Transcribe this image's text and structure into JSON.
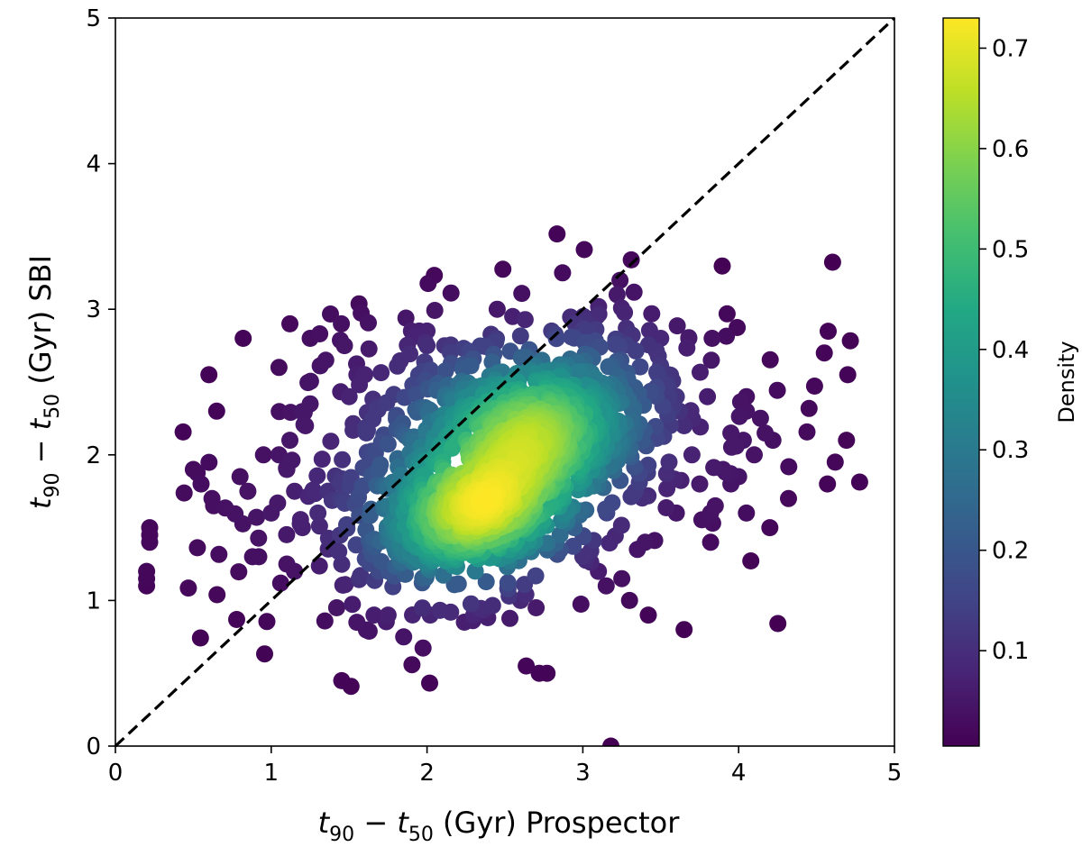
{
  "chart_data": {
    "type": "scatter",
    "xlabel_parts": {
      "t": "t",
      "sub1": "90",
      "minus": " − ",
      "sub2": "50",
      "rest": " (Gyr) Prospector"
    },
    "ylabel_parts": {
      "t": "t",
      "sub1": "90",
      "minus": " − ",
      "sub2": "50",
      "rest": " (Gyr) SBI"
    },
    "xlim": [
      0,
      5
    ],
    "ylim": [
      0,
      5
    ],
    "x_ticks": [
      "0",
      "1",
      "2",
      "3",
      "4",
      "5"
    ],
    "y_ticks": [
      "0",
      "1",
      "2",
      "3",
      "4",
      "5"
    ],
    "grid": false,
    "reference_line": {
      "style": "dashed",
      "color": "#000000",
      "from": [
        0,
        0
      ],
      "to": [
        5,
        5
      ]
    },
    "colorbar": {
      "label": "Density",
      "range": [
        0.005,
        0.73
      ],
      "ticks": [
        "0.1",
        "0.2",
        "0.3",
        "0.4",
        "0.5",
        "0.6",
        "0.7"
      ],
      "colormap": "viridis"
    },
    "clusters": [
      {
        "cx": 2.3,
        "cy": 1.55,
        "sx": 0.32,
        "sy": 0.17,
        "rho": 0.35,
        "n": 420
      },
      {
        "cx": 2.72,
        "cy": 2.15,
        "sx": 0.35,
        "sy": 0.27,
        "rho": 0.35,
        "n": 520
      },
      {
        "cx": 2.3,
        "cy": 2.0,
        "sx": 0.62,
        "sy": 0.5,
        "rho": 0.3,
        "n": 520
      },
      {
        "cx": 2.5,
        "cy": 1.9,
        "sx": 1.05,
        "sy": 0.6,
        "rho": 0.2,
        "n": 160
      }
    ],
    "points": [
      [
        0.2,
        1.15
      ],
      [
        0.2,
        1.1
      ],
      [
        0.22,
        1.5
      ],
      [
        0.22,
        1.45
      ],
      [
        0.22,
        1.4
      ],
      [
        0.2,
        1.2
      ],
      [
        0.5,
        1.9
      ],
      [
        0.55,
        1.8
      ],
      [
        0.6,
        2.55
      ],
      [
        0.62,
        1.7
      ],
      [
        0.65,
        2.3
      ],
      [
        0.8,
        1.85
      ],
      [
        0.82,
        2.8
      ],
      [
        0.85,
        1.75
      ],
      [
        0.88,
        1.3
      ],
      [
        0.92,
        1.3
      ],
      [
        0.95,
        2.0
      ],
      [
        1.0,
        1.6
      ],
      [
        1.05,
        2.6
      ],
      [
        1.05,
        2.0
      ],
      [
        1.1,
        1.9
      ],
      [
        1.1,
        1.25
      ],
      [
        1.12,
        2.1
      ],
      [
        1.12,
        2.9
      ],
      [
        1.15,
        1.2
      ],
      [
        1.15,
        1.75
      ],
      [
        1.2,
        1.5
      ],
      [
        1.22,
        2.2
      ],
      [
        1.25,
        2.35
      ],
      [
        1.25,
        2.8
      ],
      [
        1.3,
        1.6
      ],
      [
        1.35,
        2.65
      ],
      [
        1.45,
        2.9
      ],
      [
        1.47,
        2.75
      ],
      [
        1.5,
        2.4
      ],
      [
        1.55,
        2.55
      ],
      [
        1.6,
        2.55
      ],
      [
        1.42,
        0.95
      ],
      [
        1.55,
        0.85
      ],
      [
        1.66,
        0.9
      ],
      [
        1.75,
        0.9
      ],
      [
        1.85,
        0.75
      ],
      [
        1.9,
        2.85
      ],
      [
        1.95,
        2.85
      ],
      [
        2.0,
        2.85
      ],
      [
        2.0,
        2.75
      ],
      [
        2.02,
        0.9
      ],
      [
        2.3,
        0.9
      ],
      [
        2.45,
        3.0
      ],
      [
        2.55,
        2.95
      ],
      [
        2.6,
        1.0
      ],
      [
        2.7,
        0.95
      ],
      [
        2.72,
        0.5
      ],
      [
        2.77,
        0.5
      ],
      [
        2.8,
        2.85
      ],
      [
        2.87,
        3.25
      ],
      [
        2.95,
        2.9
      ],
      [
        3.0,
        1.3
      ],
      [
        3.1,
        1.2
      ],
      [
        3.15,
        1.1
      ],
      [
        3.18,
        0.0
      ],
      [
        3.22,
        3.1
      ],
      [
        3.25,
        1.15
      ],
      [
        3.3,
        1.0
      ],
      [
        3.35,
        1.35
      ],
      [
        3.4,
        1.4
      ],
      [
        3.42,
        0.9
      ],
      [
        3.5,
        2.8
      ],
      [
        3.55,
        2.55
      ],
      [
        3.6,
        2.4
      ],
      [
        3.6,
        1.6
      ],
      [
        3.62,
        2.3
      ],
      [
        3.65,
        2.2
      ],
      [
        3.65,
        0.8
      ],
      [
        3.68,
        2.8
      ],
      [
        3.7,
        2.0
      ],
      [
        3.75,
        1.8
      ],
      [
        3.8,
        2.4
      ],
      [
        3.82,
        1.6
      ],
      [
        3.82,
        1.4
      ],
      [
        3.83,
        2.8
      ],
      [
        3.85,
        1.65
      ],
      [
        3.9,
        1.9
      ],
      [
        3.95,
        2.15
      ],
      [
        3.95,
        1.8
      ],
      [
        4.0,
        1.85
      ],
      [
        4.03,
        2.1
      ],
      [
        4.05,
        2.4
      ],
      [
        4.05,
        2.3
      ],
      [
        4.05,
        1.6
      ],
      [
        4.1,
        2.0
      ],
      [
        4.17,
        2.15
      ],
      [
        4.2,
        1.5
      ],
      [
        4.22,
        2.1
      ],
      [
        4.32,
        1.7
      ],
      [
        4.55,
        2.7
      ],
      [
        4.57,
        1.8
      ],
      [
        4.62,
        1.95
      ],
      [
        4.7,
        2.55
      ]
    ]
  }
}
